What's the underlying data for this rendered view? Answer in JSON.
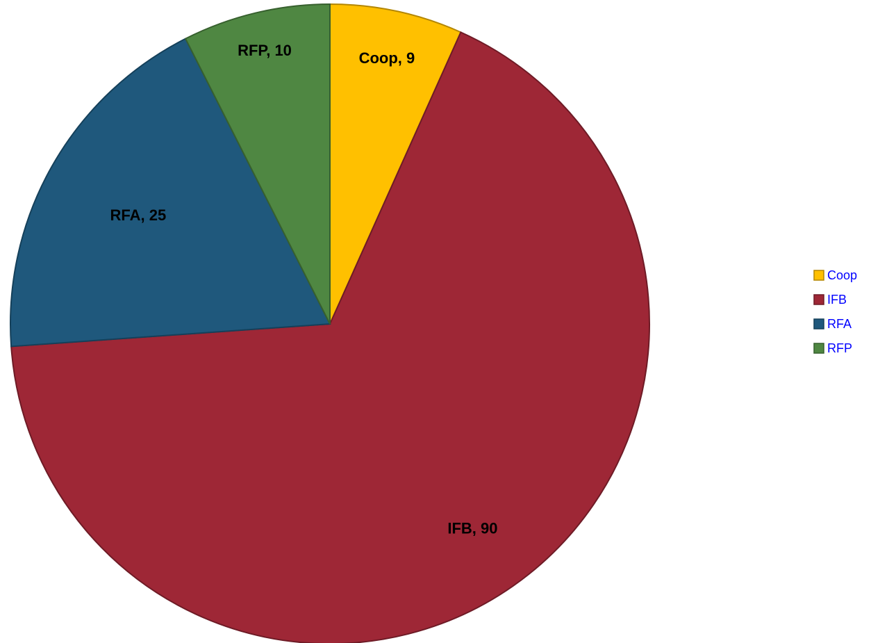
{
  "chart_data": {
    "type": "pie",
    "title": "",
    "categories": [
      "Coop",
      "IFB",
      "RFA",
      "RFP"
    ],
    "values": [
      9,
      90,
      25,
      10
    ],
    "data_labels": [
      "Coop, 9",
      "IFB, 90",
      "RFA, 25",
      "RFP, 10"
    ],
    "colors": [
      "#FFC000",
      "#9E2736",
      "#1F587C",
      "#4F8742"
    ],
    "border_colors": [
      "#B38600",
      "#6E1B26",
      "#15405A",
      "#37602E"
    ],
    "start_angle": "12 o'clock",
    "direction": "clockwise",
    "legend": {
      "position": "right",
      "items": [
        "Coop",
        "IFB",
        "RFA",
        "RFP"
      ],
      "text_color": "#0000FF"
    }
  }
}
